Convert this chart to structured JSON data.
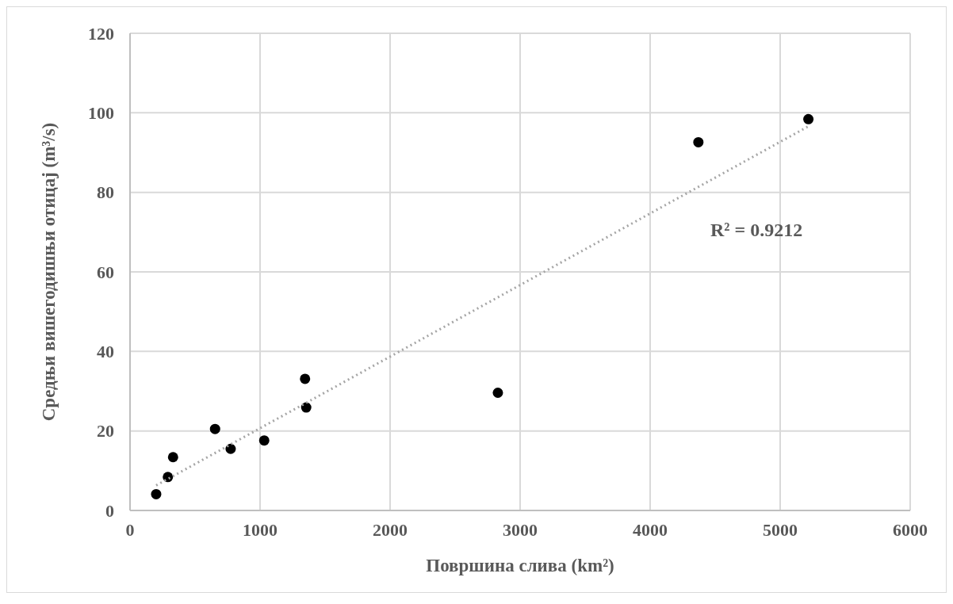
{
  "chart_data": {
    "type": "scatter",
    "xlabel": "Површина слива (km²)",
    "ylabel": "Средњи вишегодишњи отицај (m³/s)",
    "x": [
      201,
      291,
      331,
      654,
      774,
      1032,
      1346,
      1355,
      2829,
      4371,
      5217
    ],
    "series": [
      {
        "color": "#000000",
        "marker": "circle",
        "values": [
          4.1,
          8.4,
          13.4,
          20.5,
          15.5,
          17.6,
          33.1,
          25.9,
          29.6,
          92.6,
          98.4
        ]
      },
      {
        "type": "line",
        "color": "#a6a6a6",
        "line_style": "dotted",
        "marker": "none",
        "x": [
          201,
          5217
        ],
        "values": [
          6.3,
          96.6
        ]
      }
    ],
    "xlim": [
      0,
      6000
    ],
    "xticks": [
      0,
      1000,
      2000,
      3000,
      4000,
      5000,
      6000
    ],
    "ylim": [
      0,
      120
    ],
    "yticks": [
      0,
      20,
      40,
      60,
      80,
      100,
      120
    ],
    "grid": true,
    "annotations": [
      "R² = 0.9212"
    ]
  }
}
